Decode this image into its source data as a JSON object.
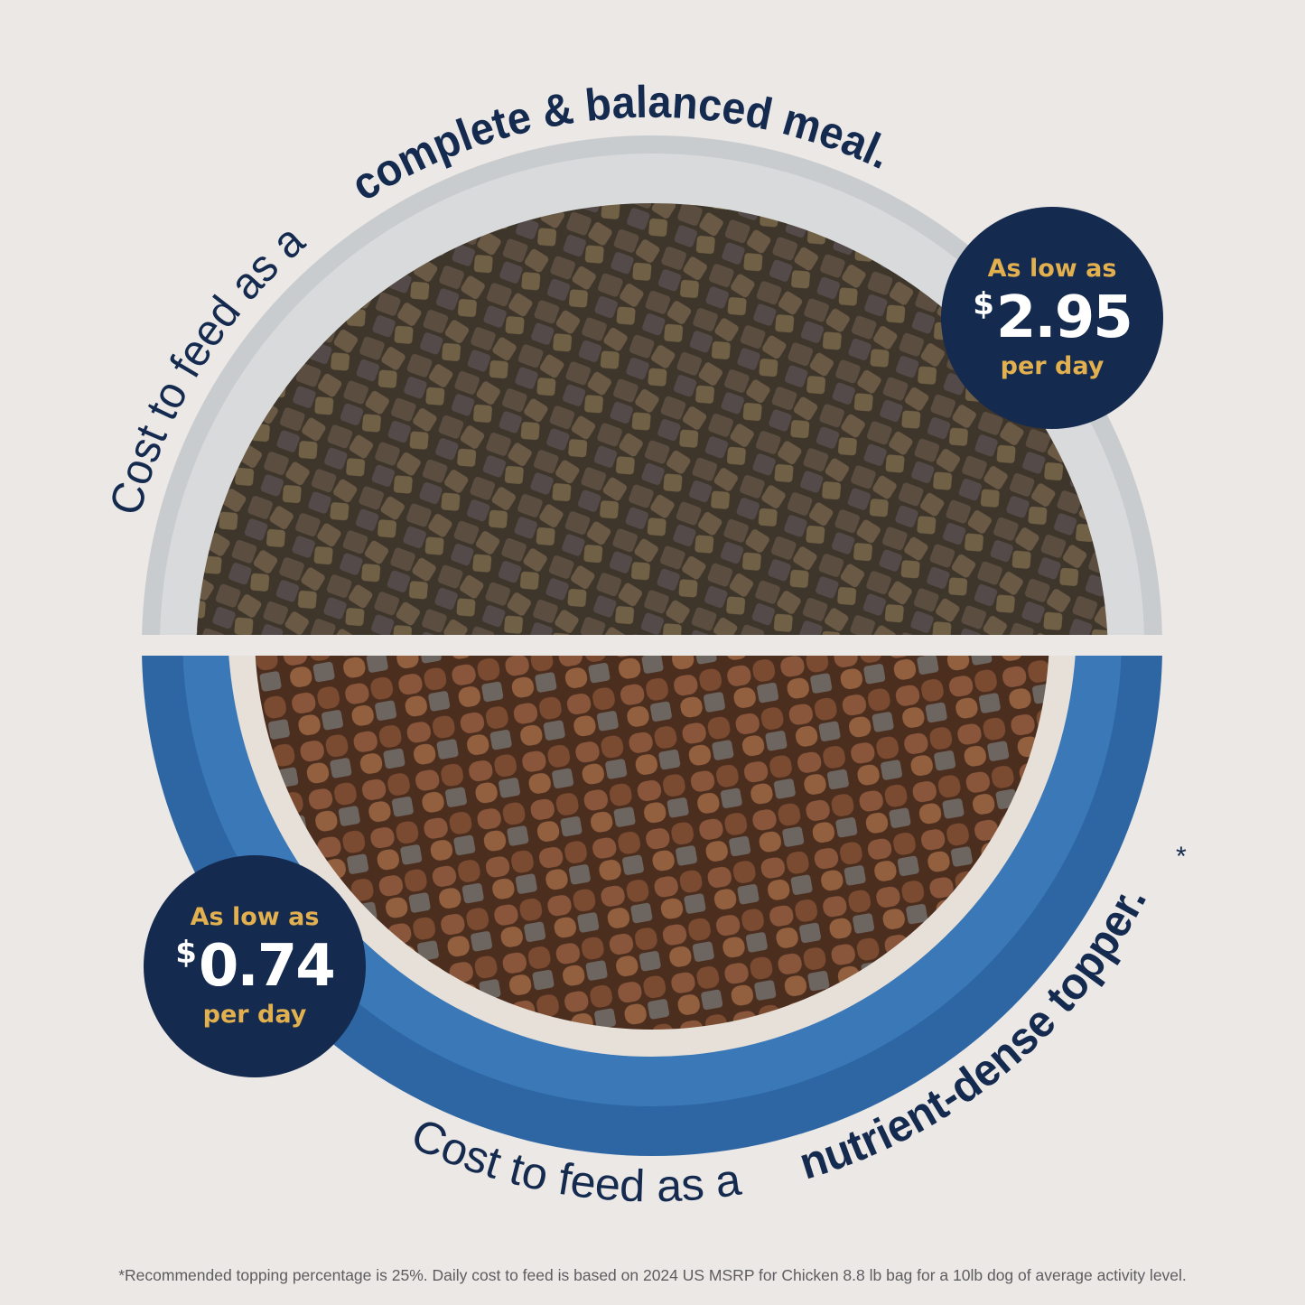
{
  "top_caption": {
    "regular": "Cost to feed as a ",
    "bold": "complete & balanced meal."
  },
  "bottom_caption": {
    "regular": "Cost to feed as a ",
    "bold": "nutrient-dense topper.",
    "mark": "*"
  },
  "badge_meal": {
    "label": "As low as",
    "currency": "$",
    "price": "2.95",
    "unit": "per day"
  },
  "badge_topper": {
    "label": "As low as",
    "currency": "$",
    "price": "0.74",
    "unit": "per day"
  },
  "footnote": "*Recommended topping percentage is 25%. Daily cost to feed is based on 2024 US MSRP for Chicken 8.8 lb bag for a 10lb dog of average activity level.",
  "colors": {
    "navy": "#142a4f",
    "gold": "#e2b04e",
    "bowl_blue": "#2d66a3",
    "background": "#ebe8e5"
  }
}
